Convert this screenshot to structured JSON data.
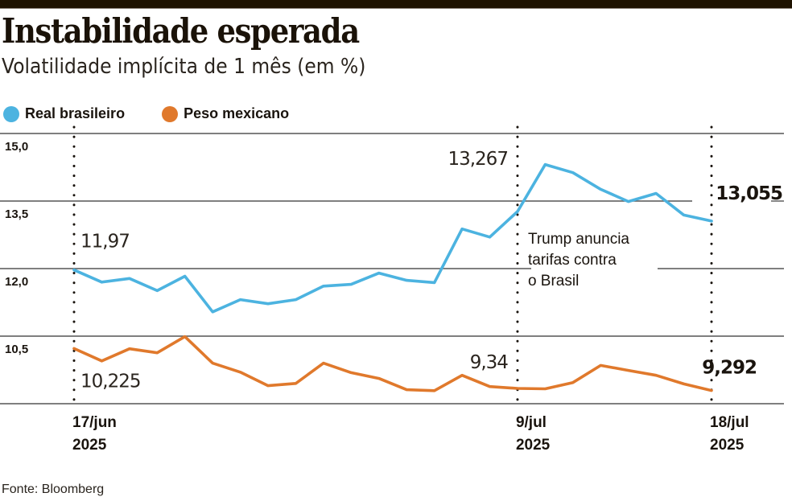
{
  "header": {
    "title": "Instabilidade esperada",
    "subtitle": "Volatilidade implícita de 1 mês (em %)"
  },
  "legend": [
    {
      "label": "Real brasileiro",
      "color": "#4cb3e0"
    },
    {
      "label": "Peso mexicano",
      "color": "#e0792c"
    }
  ],
  "source": "Fonte: Bloomberg",
  "chart_data": {
    "type": "line",
    "title": "Instabilidade esperada",
    "subtitle": "Volatilidade implícita de 1 mês (em %)",
    "xlabel": "",
    "ylabel": "",
    "ylim": [
      9.0,
      15.0
    ],
    "yticks": [
      15.0,
      13.5,
      12.0,
      10.5,
      9.0
    ],
    "ytick_labels": [
      "15,0",
      "13,5",
      "12,0",
      "10,5",
      ""
    ],
    "grid": true,
    "legend_position": "top-left",
    "x_count": 24,
    "x_markers": [
      {
        "index": 0,
        "label_line1": "17/jun",
        "label_line2": "2025"
      },
      {
        "index": 16,
        "label_line1": "9/jul",
        "label_line2": "2025"
      },
      {
        "index": 23,
        "label_line1": "18/jul",
        "label_line2": "2025"
      }
    ],
    "series": [
      {
        "name": "Real brasileiro",
        "color": "#4cb3e0",
        "values": [
          11.97,
          11.7,
          11.78,
          11.51,
          11.83,
          11.04,
          11.31,
          11.22,
          11.31,
          11.61,
          11.65,
          11.9,
          11.74,
          11.69,
          12.88,
          12.7,
          13.267,
          14.31,
          14.13,
          13.76,
          13.49,
          13.67,
          13.19,
          13.055
        ]
      },
      {
        "name": "Peso mexicano",
        "color": "#e0792c",
        "values": [
          10.225,
          9.95,
          10.22,
          10.13,
          10.49,
          9.9,
          9.7,
          9.4,
          9.45,
          9.9,
          9.69,
          9.56,
          9.31,
          9.29,
          9.63,
          9.38,
          9.34,
          9.33,
          9.47,
          9.85,
          9.74,
          9.63,
          9.44,
          9.292
        ]
      }
    ],
    "data_labels": [
      {
        "series": 0,
        "index": 0,
        "text": "11,97",
        "bold": false
      },
      {
        "series": 1,
        "index": 0,
        "text": "10,225",
        "bold": false
      },
      {
        "series": 0,
        "index": 16,
        "text": "13,267",
        "bold": false
      },
      {
        "series": 1,
        "index": 16,
        "text": "9,34",
        "bold": false
      },
      {
        "series": 0,
        "index": 23,
        "text": "13,055",
        "bold": true
      },
      {
        "series": 1,
        "index": 23,
        "text": "9,292",
        "bold": true
      }
    ],
    "annotations": [
      {
        "at_index": 16,
        "lines": [
          "Trump anuncia",
          "tarifas contra",
          "o Brasil"
        ]
      }
    ]
  }
}
